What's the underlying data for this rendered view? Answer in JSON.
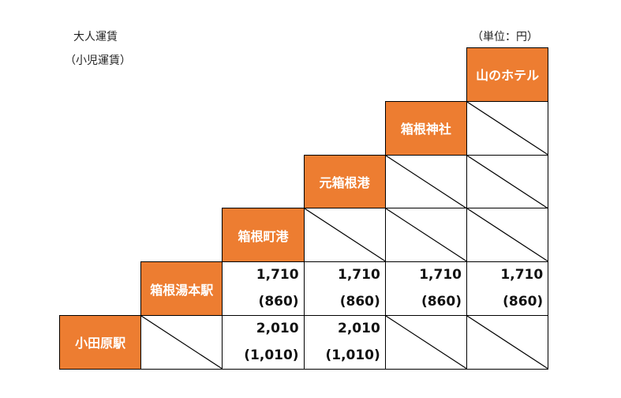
{
  "header": {
    "title": "大人運賃",
    "subtitle": "（小児運賃）",
    "unit": "（単位：円）"
  },
  "table": {
    "rows": [
      {
        "station": "山のホテル",
        "fares": []
      },
      {
        "station": "箱根神社",
        "fares": [
          null
        ]
      },
      {
        "station": "元箱根港",
        "fares": [
          null,
          null
        ]
      },
      {
        "station": "箱根町港",
        "fares": [
          null,
          null,
          null
        ]
      },
      {
        "station": "箱根湯本駅",
        "fares": [
          {
            "adult": "1,710",
            "child": "(860)"
          },
          {
            "adult": "1,710",
            "child": "(860)"
          },
          {
            "adult": "1,710",
            "child": "(860)"
          },
          {
            "adult": "1,710",
            "child": "(860)"
          }
        ]
      },
      {
        "station": "小田原駅",
        "fares": [
          null,
          {
            "adult": "2,010",
            "child": "(1,010)"
          },
          {
            "adult": "2,010",
            "child": "(1,010)"
          },
          null,
          null
        ]
      }
    ]
  }
}
